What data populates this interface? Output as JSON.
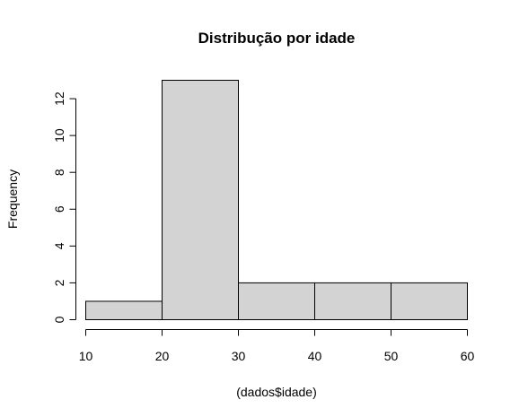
{
  "chart_data": {
    "type": "bar",
    "subtype": "histogram",
    "title": "Distribução por idade",
    "xlabel": "(dados$idade)",
    "ylabel": "Frequency",
    "bins": [
      {
        "from": 10,
        "to": 20,
        "count": 1
      },
      {
        "from": 20,
        "to": 30,
        "count": 13
      },
      {
        "from": 30,
        "to": 40,
        "count": 2
      },
      {
        "from": 40,
        "to": 50,
        "count": 2
      },
      {
        "from": 50,
        "to": 60,
        "count": 2
      }
    ],
    "xlim": [
      10,
      60
    ],
    "ylim": [
      0,
      13
    ],
    "x_ticks": [
      10,
      20,
      30,
      40,
      50,
      60
    ],
    "y_ticks": [
      0,
      2,
      4,
      6,
      8,
      10,
      12
    ],
    "grid": false,
    "bar_color": "#d3d3d3",
    "edge_color": "#000000"
  }
}
